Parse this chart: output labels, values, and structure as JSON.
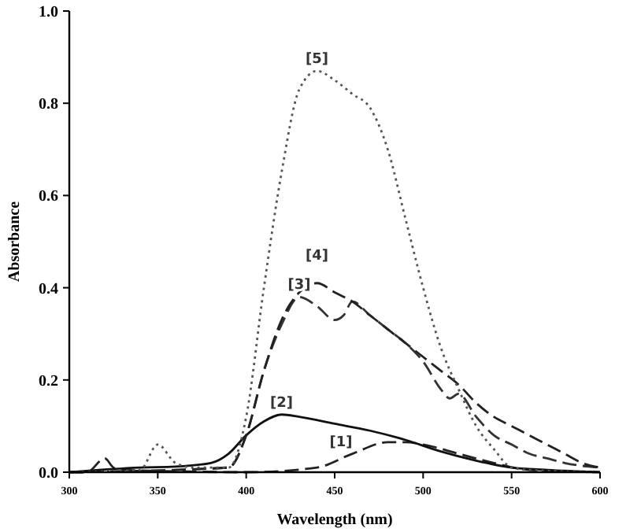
{
  "chart_data": {
    "type": "line",
    "xlabel": "Wavelength (nm)",
    "ylabel": "Absorbance",
    "xlim": [
      300,
      600
    ],
    "ylim": [
      0,
      1.0
    ],
    "xticks": [
      300,
      350,
      400,
      450,
      500,
      550,
      600
    ],
    "yticks": [
      {
        "value": 0,
        "label": "0.0"
      },
      0.2,
      0.4,
      0.6,
      0.8,
      {
        "value": 1,
        "label": "1.0"
      }
    ],
    "grid": false,
    "marker": "none",
    "series": [
      {
        "color": "#222222",
        "line_style": "dashed",
        "x": [
          300,
          310,
          320,
          325,
          330,
          360,
          400,
          440,
          460,
          480,
          490,
          500,
          520,
          540,
          560,
          600
        ],
        "values": [
          0,
          0,
          0.03,
          0.01,
          0.005,
          0.002,
          0,
          0.01,
          0.04,
          0.065,
          0.065,
          0.06,
          0.04,
          0.02,
          0.005,
          0
        ]
      },
      {
        "color": "#111111",
        "line_style": "solid",
        "x": [
          300,
          340,
          360,
          380,
          390,
          400,
          410,
          420,
          430,
          450,
          470,
          490,
          510,
          530,
          550,
          570,
          600
        ],
        "values": [
          0,
          0.01,
          0.012,
          0.02,
          0.04,
          0.08,
          0.11,
          0.125,
          0.12,
          0.105,
          0.09,
          0.07,
          0.045,
          0.025,
          0.01,
          0.005,
          0
        ]
      },
      {
        "color": "#333333",
        "line_style": "dashed",
        "x": [
          300,
          390,
          400,
          410,
          420,
          430,
          440,
          450,
          455,
          460,
          470,
          480,
          490,
          500,
          510,
          515,
          520,
          530,
          540,
          550,
          560,
          570,
          580,
          600
        ],
        "values": [
          0,
          0.01,
          0.08,
          0.22,
          0.32,
          0.38,
          0.36,
          0.33,
          0.34,
          0.37,
          0.34,
          0.31,
          0.28,
          0.24,
          0.18,
          0.16,
          0.17,
          0.12,
          0.08,
          0.06,
          0.04,
          0.03,
          0.02,
          0.01
        ]
      },
      {
        "color": "#222222",
        "line_style": "dashed",
        "x": [
          300,
          390,
          400,
          410,
          420,
          430,
          440,
          450,
          460,
          470,
          480,
          490,
          500,
          510,
          520,
          530,
          540,
          550,
          560,
          570,
          580,
          590,
          600
        ],
        "values": [
          0,
          0.01,
          0.08,
          0.22,
          0.33,
          0.39,
          0.41,
          0.39,
          0.37,
          0.34,
          0.31,
          0.28,
          0.25,
          0.22,
          0.19,
          0.15,
          0.12,
          0.1,
          0.08,
          0.06,
          0.04,
          0.02,
          0.01
        ]
      },
      {
        "color": "#555555",
        "line_style": "dotted",
        "x": [
          300,
          340,
          350,
          360,
          370,
          390,
          400,
          410,
          420,
          430,
          440,
          450,
          460,
          470,
          480,
          490,
          500,
          510,
          520,
          530,
          540,
          550,
          560,
          600
        ],
        "values": [
          0,
          0.005,
          0.06,
          0.02,
          0.01,
          0.01,
          0.12,
          0.4,
          0.65,
          0.83,
          0.87,
          0.85,
          0.82,
          0.79,
          0.7,
          0.55,
          0.4,
          0.27,
          0.18,
          0.1,
          0.05,
          0.01,
          0.005,
          0
        ]
      }
    ],
    "annotations": [
      {
        "text": "[1]",
        "x": 460,
        "y": 0.04
      },
      {
        "text": "[2]",
        "x": 420,
        "y": 0.125
      },
      {
        "text": "[3]",
        "x": 430,
        "y": 0.38
      },
      {
        "text": "[4]",
        "x": 440,
        "y": 0.41
      },
      {
        "text": "[5]",
        "x": 440,
        "y": 0.87
      }
    ]
  }
}
